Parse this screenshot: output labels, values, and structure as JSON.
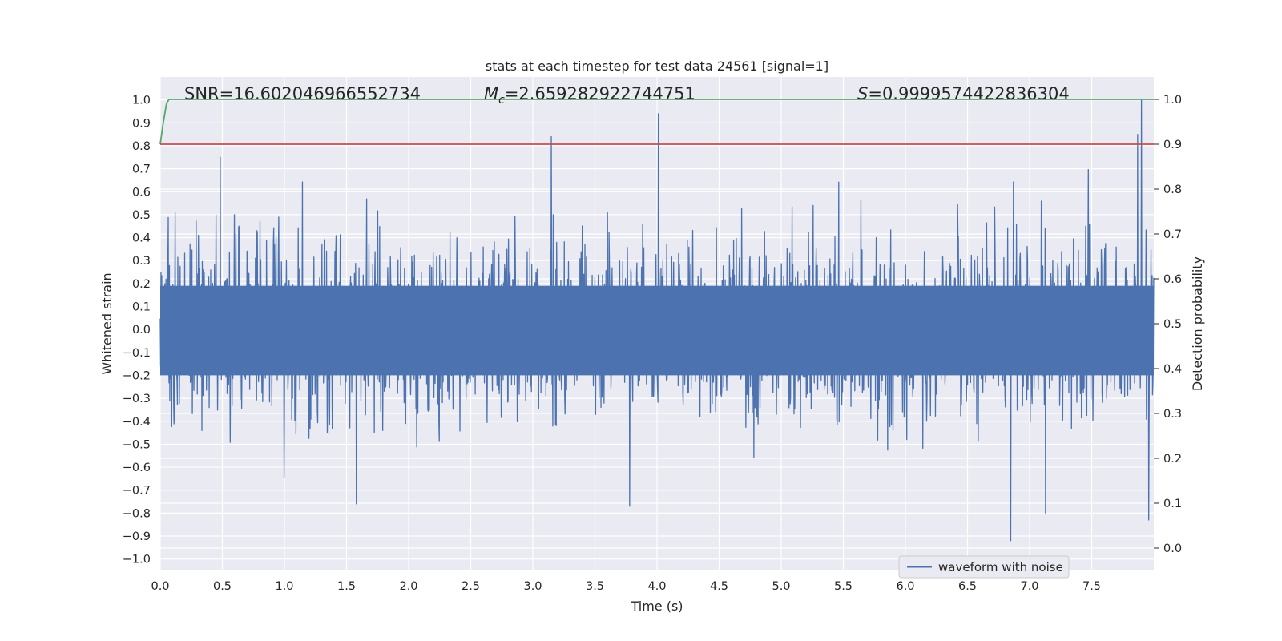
{
  "chart_data": {
    "type": "line",
    "title": "stats at each timestep for test data 24561 [signal=1]",
    "xlabel": "Time (s)",
    "ylabel_left": "Whitened strain",
    "ylabel_right": "Detection probability",
    "xlim": [
      0,
      8
    ],
    "ylim_left": [
      -1.05,
      1.1
    ],
    "ylim_right": [
      -0.05,
      1.05
    ],
    "x_ticks": [
      "0.0",
      "0.5",
      "1.0",
      "1.5",
      "2.0",
      "2.5",
      "3.0",
      "3.5",
      "4.0",
      "4.5",
      "5.0",
      "5.5",
      "6.0",
      "6.5",
      "7.0",
      "7.5"
    ],
    "y_ticks_left": [
      "1.0",
      "0.9",
      "0.8",
      "0.7",
      "0.6",
      "0.5",
      "0.4",
      "0.3",
      "0.2",
      "0.1",
      "0.0",
      "−0.1",
      "−0.2",
      "−0.3",
      "−0.4",
      "−0.5",
      "−0.6",
      "−0.7",
      "−0.8",
      "−0.9",
      "−1.0"
    ],
    "y_ticks_right": [
      "1.0",
      "0.9",
      "0.8",
      "0.7",
      "0.6",
      "0.5",
      "0.4",
      "0.3",
      "0.2",
      "0.1",
      "0.0"
    ],
    "grid": true,
    "legend_position": "lower-right",
    "annotations": {
      "snr": "SNR=16.602046966552734",
      "mc_symbol": "M",
      "mc_sub": "c",
      "mc_value": "=2.659282922744751",
      "s_symbol": "S",
      "s_value": "=0.9999574422836304"
    },
    "series": [
      {
        "name": "waveform with noise",
        "axis": "left",
        "color": "#4c72b0",
        "note_range": [
          -0.93,
          1.0
        ],
        "spikes": [
          {
            "x": 3.15,
            "y": 0.84
          },
          {
            "x": 4.01,
            "y": 0.94
          },
          {
            "x": 7.9,
            "y": 1.0
          },
          {
            "x": 7.87,
            "y": 0.85
          },
          {
            "x": 6.85,
            "y": -0.92
          },
          {
            "x": 7.13,
            "y": -0.8
          },
          {
            "x": 3.78,
            "y": -0.77
          },
          {
            "x": 1.58,
            "y": -0.76
          },
          {
            "x": 7.96,
            "y": -0.83
          }
        ]
      },
      {
        "axis": "right",
        "color": "#55a868",
        "x": [
          0.0,
          0.02,
          0.05,
          0.07,
          0.1,
          0.5,
          8.0
        ],
        "y": [
          0.9,
          0.94,
          0.99,
          1.0,
          1.0,
          1.0,
          1.0
        ]
      },
      {
        "axis": "right",
        "color": "#c44e52",
        "x": [
          0.0,
          8.0
        ],
        "y": [
          0.9,
          0.9
        ]
      }
    ]
  }
}
